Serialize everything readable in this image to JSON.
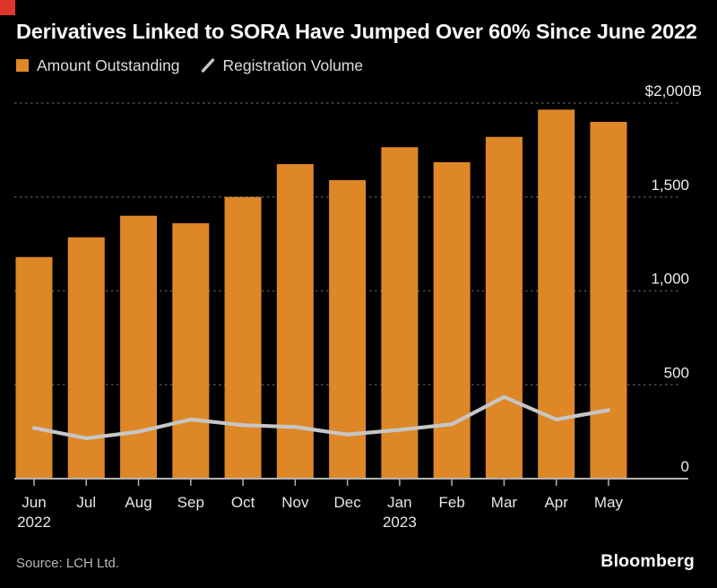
{
  "colors": {
    "background": "#000000",
    "brand_red": "#e0352b",
    "bar_orange": "#de8727",
    "line_gray": "#c6c6c6",
    "grid_gray": "#4e4e4e",
    "axis_gray": "#b3b3b3"
  },
  "header": {
    "title": "Derivatives Linked to SORA Have Jumped Over 60% Since June 2022"
  },
  "legend": {
    "bar_label": "Amount Outstanding",
    "line_label": "Registration Volume"
  },
  "footer": {
    "source": "Source: LCH Ltd.",
    "brand": "Bloomberg"
  },
  "chart_data": {
    "type": "bar",
    "title": "Derivatives Linked to SORA Have Jumped Over 60% Since June 2022",
    "categories": [
      "Jun",
      "Jul",
      "Aug",
      "Sep",
      "Oct",
      "Nov",
      "Dec",
      "Jan",
      "Feb",
      "Mar",
      "Apr",
      "May"
    ],
    "category_sublabels": [
      "2022",
      "",
      "",
      "",
      "",
      "",
      "",
      "2023",
      "",
      "",
      "",
      ""
    ],
    "series": [
      {
        "name": "Amount Outstanding",
        "type": "bar",
        "color": "#de8727",
        "values": [
          1180,
          1285,
          1400,
          1360,
          1500,
          1675,
          1590,
          1765,
          1685,
          1820,
          1965,
          1900
        ]
      },
      {
        "name": "Registration Volume",
        "type": "line",
        "color": "#c6c6c6",
        "values": [
          270,
          215,
          250,
          315,
          285,
          275,
          235,
          260,
          290,
          435,
          315,
          365
        ]
      }
    ],
    "xlabel": "",
    "ylabel": "",
    "ylim": [
      0,
      2000
    ],
    "yticks": [
      {
        "value": 0,
        "label": "0"
      },
      {
        "value": 500,
        "label": "500"
      },
      {
        "value": 1000,
        "label": "1,000"
      },
      {
        "value": 1500,
        "label": "1,500"
      },
      {
        "value": 2000,
        "label": "$2,000B"
      }
    ],
    "grid": "horizontal-dotted",
    "legend_position": "top-left"
  }
}
